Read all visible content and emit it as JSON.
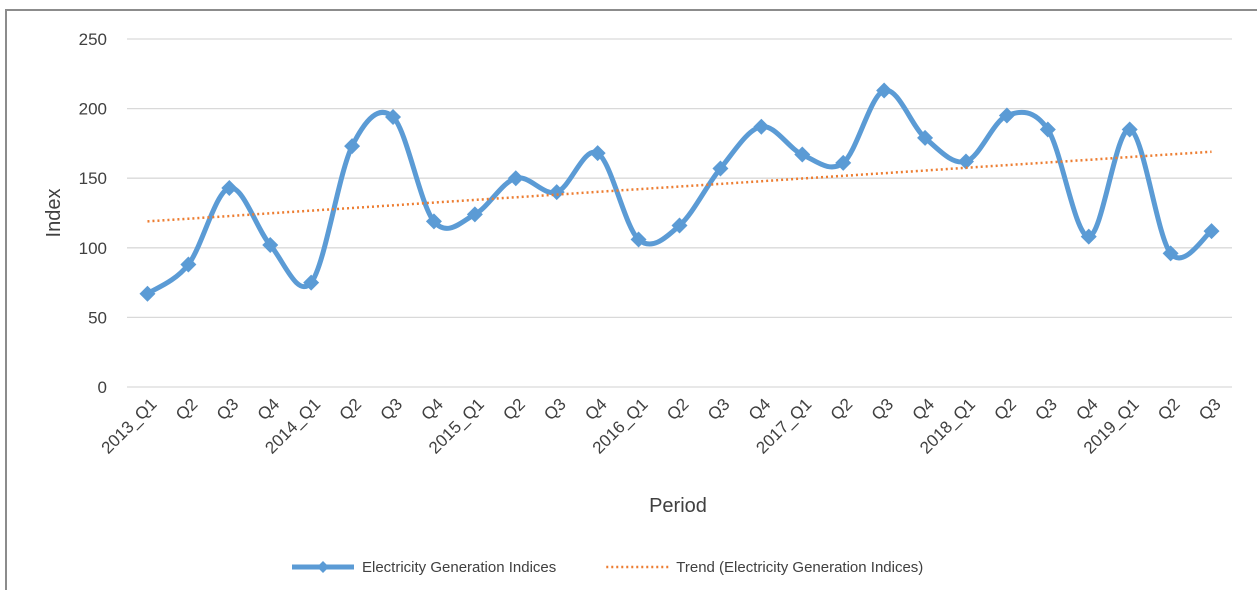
{
  "chart_data": {
    "type": "line",
    "x_label": "Period",
    "y_label": "Index",
    "categories": [
      "2013_Q1",
      "Q2",
      "Q3",
      "Q4",
      "2014_Q1",
      "Q2",
      "Q3",
      "Q4",
      "2015_Q1",
      "Q2",
      "Q3",
      "Q4",
      "2016_Q1",
      "Q2",
      "Q3",
      "Q4",
      "2017_Q1",
      "Q2",
      "Q3",
      "Q4",
      "2018_Q1",
      "Q2",
      "Q3",
      "Q4",
      "2019_Q1",
      "Q2",
      "Q3"
    ],
    "series": [
      {
        "name": "Electricity Generation Indices",
        "color": "#5b9bd5",
        "values": [
          67,
          88,
          143,
          102,
          75,
          173,
          194,
          119,
          124,
          150,
          140,
          168,
          106,
          116,
          157,
          187,
          167,
          161,
          213,
          179,
          162,
          195,
          185,
          108,
          185,
          96,
          112
        ]
      },
      {
        "name": "Trend (Electricity Generation Indices)",
        "color": "#ed7d31",
        "values": [
          119.0,
          120.9,
          122.8,
          124.8,
          126.7,
          128.6,
          130.5,
          132.5,
          134.4,
          136.3,
          138.2,
          140.2,
          142.1,
          144.0,
          145.9,
          147.8,
          149.8,
          151.7,
          153.6,
          155.5,
          157.5,
          159.4,
          161.3,
          163.2,
          165.2,
          167.1,
          169.0
        ]
      }
    ],
    "ylim": [
      0,
      250
    ],
    "yticks": [
      0,
      50,
      100,
      150,
      200,
      250
    ],
    "grid": true,
    "legend": "bottom"
  }
}
